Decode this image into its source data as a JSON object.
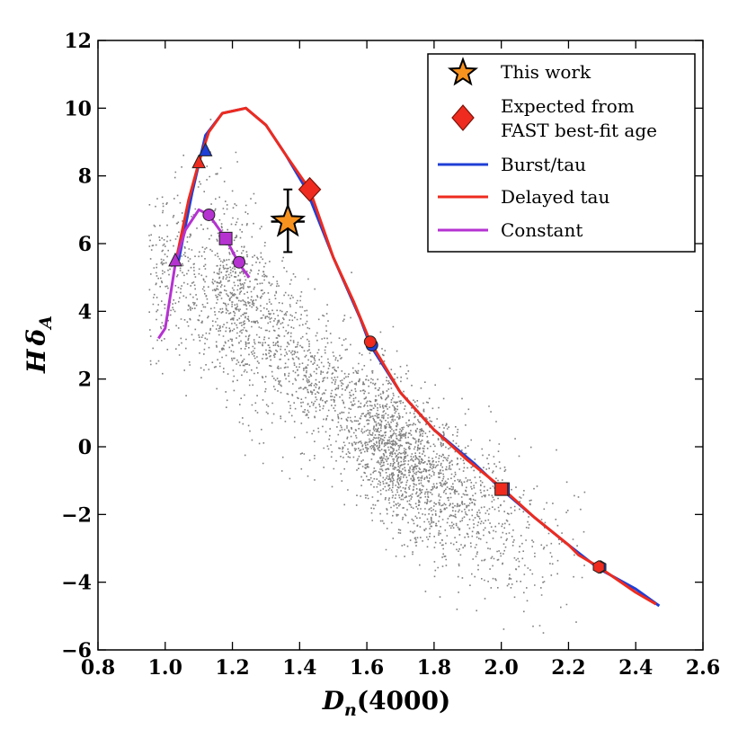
{
  "chart_data": {
    "type": "scatter",
    "xlabel_main": "D",
    "xlabel_sub": "n",
    "xlabel_rest": "(4000)",
    "ylabel_main": "H",
    "ylabel_delta": "δ",
    "ylabel_sub": "A",
    "xlim": [
      0.8,
      2.6
    ],
    "ylim": [
      -6,
      12
    ],
    "x_ticks": [
      0.8,
      1.0,
      1.2,
      1.4,
      1.6,
      1.8,
      2.0,
      2.2,
      2.4,
      2.6
    ],
    "x_tick_labels": [
      "0.8",
      "1.0",
      "1.2",
      "1.4",
      "1.6",
      "1.8",
      "2.0",
      "2.2",
      "2.4",
      "2.6"
    ],
    "y_ticks": [
      -6,
      -4,
      -2,
      0,
      2,
      4,
      6,
      8,
      10,
      12
    ],
    "y_tick_labels": [
      "−6",
      "−4",
      "−2",
      "0",
      "2",
      "4",
      "6",
      "8",
      "10",
      "12"
    ],
    "background_scatter": {
      "description_count": 5000,
      "color": "#7f7f7f",
      "trend": [
        [
          0.95,
          5.5
        ],
        [
          1.2,
          4.5
        ],
        [
          1.4,
          2.5
        ],
        [
          1.6,
          0.5
        ],
        [
          1.8,
          -1.0
        ],
        [
          1.95,
          -2.0
        ],
        [
          2.1,
          -2.8
        ]
      ]
    },
    "series": [
      {
        "name": "Burst/tau",
        "color": "#1f3fd6",
        "points": [
          [
            1.04,
            5.5
          ],
          [
            1.08,
            7.5
          ],
          [
            1.12,
            9.2
          ],
          [
            1.17,
            9.85
          ],
          [
            1.24,
            10.0
          ],
          [
            1.3,
            9.5
          ],
          [
            1.36,
            8.6
          ],
          [
            1.42,
            7.6
          ],
          [
            1.5,
            5.6
          ],
          [
            1.58,
            3.8
          ],
          [
            1.61,
            3.0
          ],
          [
            1.7,
            1.6
          ],
          [
            1.8,
            0.5
          ],
          [
            1.92,
            -0.5
          ],
          [
            2.0,
            -1.25
          ],
          [
            2.1,
            -2.1
          ],
          [
            2.2,
            -2.9
          ],
          [
            2.29,
            -3.6
          ],
          [
            2.4,
            -4.2
          ],
          [
            2.47,
            -4.7
          ]
        ]
      },
      {
        "name": "Delayed tau",
        "color": "#ee2b1e",
        "points": [
          [
            1.03,
            5.4
          ],
          [
            1.07,
            7.3
          ],
          [
            1.1,
            8.4
          ],
          [
            1.13,
            9.3
          ],
          [
            1.17,
            9.85
          ],
          [
            1.24,
            10.0
          ],
          [
            1.3,
            9.5
          ],
          [
            1.36,
            8.6
          ],
          [
            1.43,
            7.6
          ],
          [
            1.5,
            5.6
          ],
          [
            1.56,
            4.3
          ],
          [
            1.61,
            3.1
          ],
          [
            1.7,
            1.6
          ],
          [
            1.8,
            0.5
          ],
          [
            1.9,
            -0.4
          ],
          [
            2.0,
            -1.2
          ],
          [
            2.1,
            -2.1
          ],
          [
            2.2,
            -2.9
          ],
          [
            2.23,
            -3.2
          ],
          [
            2.29,
            -3.55
          ],
          [
            2.4,
            -4.3
          ],
          [
            2.46,
            -4.65
          ]
        ]
      },
      {
        "name": "Constant",
        "color": "#b532d1",
        "points": [
          [
            0.98,
            3.2
          ],
          [
            1.0,
            3.5
          ],
          [
            1.03,
            5.4
          ],
          [
            1.06,
            6.4
          ],
          [
            1.1,
            7.0
          ],
          [
            1.13,
            6.85
          ],
          [
            1.18,
            6.15
          ],
          [
            1.22,
            5.4
          ],
          [
            1.25,
            5.0
          ]
        ]
      }
    ],
    "markers": [
      {
        "series": "Delayed tau",
        "shape": "triangle",
        "x": 1.1,
        "y": 8.4,
        "color": "#ee2b1e"
      },
      {
        "series": "Burst/tau",
        "shape": "triangle",
        "x": 1.12,
        "y": 8.75,
        "color": "#1f3fd6"
      },
      {
        "series": "Constant",
        "shape": "triangle",
        "x": 1.03,
        "y": 5.5,
        "color": "#b532d1"
      },
      {
        "series": "Constant",
        "shape": "circle",
        "x": 1.13,
        "y": 6.85,
        "color": "#b532d1"
      },
      {
        "series": "Constant",
        "shape": "square",
        "x": 1.18,
        "y": 6.15,
        "color": "#b532d1"
      },
      {
        "series": "Constant",
        "shape": "circle",
        "x": 1.22,
        "y": 5.45,
        "color": "#b532d1"
      },
      {
        "series": "Burst/tau",
        "shape": "circle",
        "x": 1.615,
        "y": 3.0,
        "color": "#1f3fd6"
      },
      {
        "series": "Delayed tau",
        "shape": "circle",
        "x": 1.61,
        "y": 3.1,
        "color": "#ee2b1e"
      },
      {
        "series": "Burst/tau",
        "shape": "square",
        "x": 2.005,
        "y": -1.25,
        "color": "#1f3fd6"
      },
      {
        "series": "Delayed tau",
        "shape": "square",
        "x": 2.0,
        "y": -1.25,
        "color": "#ee2b1e"
      },
      {
        "series": "Burst/tau",
        "shape": "hexagon",
        "x": 2.295,
        "y": -3.55,
        "color": "#1f3fd6"
      },
      {
        "series": "Delayed tau",
        "shape": "hexagon",
        "x": 2.29,
        "y": -3.55,
        "color": "#ee2b1e"
      }
    ],
    "this_work": {
      "x": 1.365,
      "y": 6.65,
      "xerr": 0.05,
      "yerr_low": 0.9,
      "yerr_high": 0.95,
      "color": "#f7921e"
    },
    "expected_fast": {
      "x": 1.43,
      "y": 7.6,
      "color": "#ee2b1e"
    },
    "legend": {
      "placement": "top-right",
      "items": [
        {
          "label_lines": [
            "This work"
          ],
          "kind": "star",
          "color": "#f7921e"
        },
        {
          "label_lines": [
            "Expected from",
            "FAST best-fit age"
          ],
          "kind": "diamond",
          "color": "#ee2b1e"
        },
        {
          "label_lines": [
            "Burst/tau"
          ],
          "kind": "line",
          "color": "#1f3fd6"
        },
        {
          "label_lines": [
            "Delayed tau"
          ],
          "kind": "line",
          "color": "#ee2b1e"
        },
        {
          "label_lines": [
            "Constant"
          ],
          "kind": "line",
          "color": "#b532d1"
        }
      ]
    }
  }
}
